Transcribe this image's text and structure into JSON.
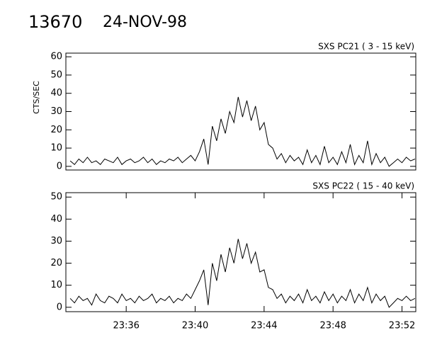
{
  "header": {
    "number": "13670",
    "date": "24-NOV-98"
  },
  "chart_data": [
    {
      "type": "line",
      "label": "SXS PC21  (  3 - 15 keV)",
      "y_label": "CTS/SEC",
      "xlim": [
        1412.5,
        1432.8
      ],
      "ylim": [
        -2,
        62
      ],
      "yticks": [
        0,
        10,
        20,
        30,
        40,
        50,
        60
      ],
      "x": [
        1412.75,
        1413,
        1413.25,
        1413.5,
        1413.75,
        1414,
        1414.25,
        1414.5,
        1414.75,
        1415,
        1415.25,
        1415.5,
        1415.75,
        1416,
        1416.25,
        1416.5,
        1416.75,
        1417,
        1417.25,
        1417.5,
        1417.75,
        1418,
        1418.25,
        1418.5,
        1418.75,
        1419,
        1419.25,
        1419.5,
        1419.75,
        1420,
        1420.25,
        1420.5,
        1420.75,
        1421,
        1421.25,
        1421.5,
        1421.75,
        1422,
        1422.25,
        1422.5,
        1422.75,
        1423,
        1423.25,
        1423.5,
        1423.75,
        1424,
        1424.25,
        1424.5,
        1424.75,
        1425,
        1425.25,
        1425.5,
        1425.75,
        1426,
        1426.25,
        1426.5,
        1426.75,
        1427,
        1427.25,
        1427.5,
        1427.75,
        1428,
        1428.25,
        1428.5,
        1428.75,
        1429,
        1429.25,
        1429.5,
        1429.75,
        1430,
        1430.25,
        1430.5,
        1430.75,
        1431,
        1431.25,
        1431.5,
        1431.75,
        1432,
        1432.25,
        1432.5,
        1432.75
      ],
      "series": [
        {
          "color": "#000000",
          "values": [
            3,
            1,
            4,
            2,
            5,
            2,
            3,
            1,
            4,
            3,
            2,
            5,
            1,
            3,
            4,
            2,
            3,
            5,
            2,
            4,
            1,
            3,
            2,
            4,
            3,
            5,
            2,
            4,
            6,
            3,
            8,
            15,
            1,
            22,
            14,
            26,
            18,
            30,
            24,
            38,
            27,
            36,
            25,
            33,
            20,
            24,
            12,
            10,
            4,
            7,
            2,
            6,
            3,
            5,
            1,
            9,
            2,
            6,
            1,
            11,
            2,
            5,
            1,
            8,
            2,
            12,
            1,
            6,
            2,
            14,
            1,
            7,
            2,
            5,
            0,
            2,
            4,
            2,
            5,
            3,
            4
          ]
        }
      ]
    },
    {
      "type": "line",
      "label": "SXS PC22  ( 15 - 40 keV)",
      "xlim": [
        1412.5,
        1432.8
      ],
      "ylim": [
        -2,
        52
      ],
      "yticks": [
        0,
        10,
        20,
        30,
        40,
        50
      ],
      "xticks": [
        {
          "value": 1416,
          "label": "23:36"
        },
        {
          "value": 1420,
          "label": "23:40"
        },
        {
          "value": 1424,
          "label": "23:44"
        },
        {
          "value": 1428,
          "label": "23:48"
        },
        {
          "value": 1432,
          "label": "23:52"
        }
      ],
      "x": [
        1412.75,
        1413,
        1413.25,
        1413.5,
        1413.75,
        1414,
        1414.25,
        1414.5,
        1414.75,
        1415,
        1415.25,
        1415.5,
        1415.75,
        1416,
        1416.25,
        1416.5,
        1416.75,
        1417,
        1417.25,
        1417.5,
        1417.75,
        1418,
        1418.25,
        1418.5,
        1418.75,
        1419,
        1419.25,
        1419.5,
        1419.75,
        1420,
        1420.25,
        1420.5,
        1420.75,
        1421,
        1421.25,
        1421.5,
        1421.75,
        1422,
        1422.25,
        1422.5,
        1422.75,
        1423,
        1423.25,
        1423.5,
        1423.75,
        1424,
        1424.25,
        1424.5,
        1424.75,
        1425,
        1425.25,
        1425.5,
        1425.75,
        1426,
        1426.25,
        1426.5,
        1426.75,
        1427,
        1427.25,
        1427.5,
        1427.75,
        1428,
        1428.25,
        1428.5,
        1428.75,
        1429,
        1429.25,
        1429.5,
        1429.75,
        1430,
        1430.25,
        1430.5,
        1430.75,
        1431,
        1431.25,
        1431.5,
        1431.75,
        1432,
        1432.25,
        1432.5,
        1432.75
      ],
      "series": [
        {
          "color": "#000000",
          "values": [
            4,
            2,
            5,
            3,
            4,
            1,
            6,
            3,
            2,
            5,
            4,
            2,
            6,
            3,
            4,
            2,
            5,
            3,
            4,
            6,
            2,
            4,
            3,
            5,
            2,
            4,
            3,
            6,
            4,
            8,
            12,
            17,
            1,
            20,
            12,
            24,
            16,
            27,
            20,
            31,
            22,
            29,
            20,
            25,
            16,
            17,
            9,
            8,
            4,
            6,
            2,
            5,
            3,
            6,
            2,
            8,
            3,
            5,
            2,
            7,
            3,
            6,
            2,
            5,
            3,
            8,
            2,
            6,
            3,
            9,
            2,
            6,
            3,
            5,
            0,
            2,
            4,
            3,
            5,
            3,
            4
          ]
        }
      ]
    }
  ]
}
